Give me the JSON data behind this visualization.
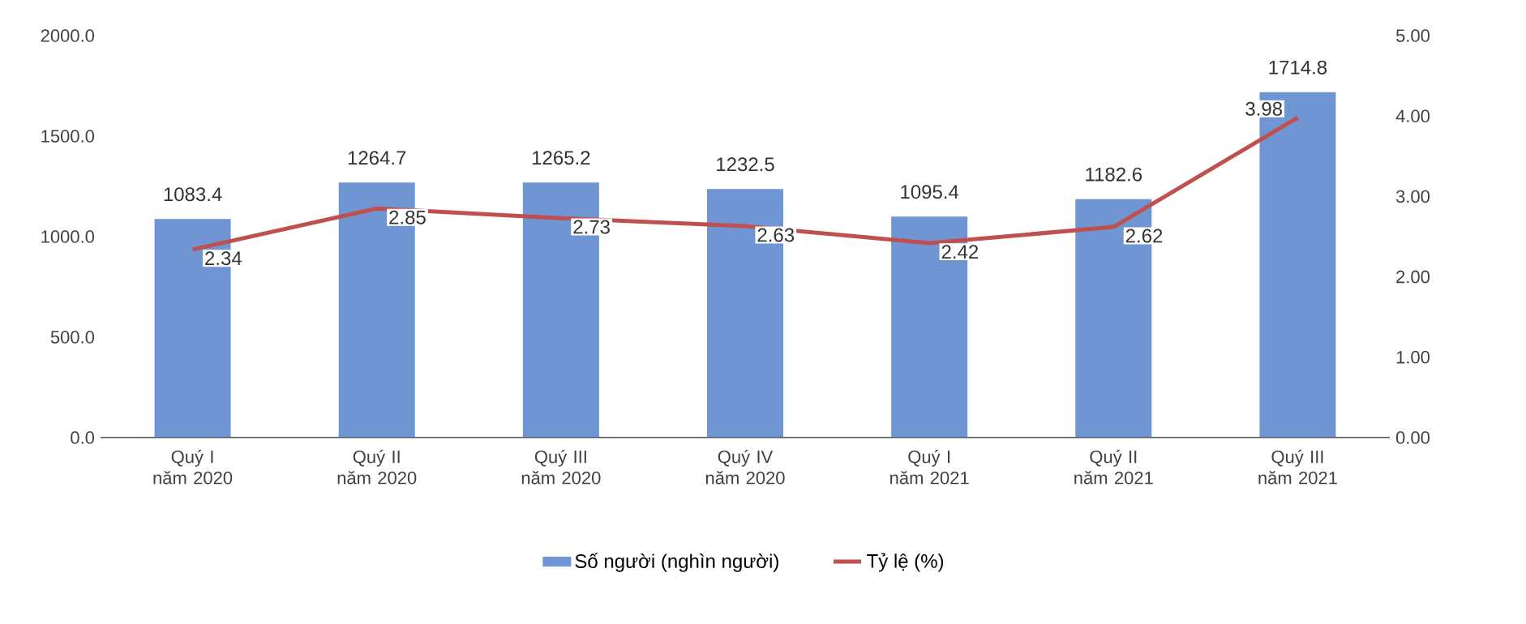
{
  "chart_data": {
    "type": "bar",
    "categories": [
      "Quý I năm 2020",
      "Quý II năm 2020",
      "Quý III năm 2020",
      "Quý IV năm 2020",
      "Quý I năm 2021",
      "Quý II năm 2021",
      "Quý III năm 2021"
    ],
    "series": [
      {
        "name": "Số người (nghìn người)",
        "color": "#6f95d2",
        "values": [
          1083.4,
          1264.7,
          1265.2,
          1232.5,
          1095.4,
          1182.6,
          1714.8
        ],
        "value_labels": [
          "1083.4",
          "1264.7",
          "1265.2",
          "1232.5",
          "1095.4",
          "1182.6",
          "1714.8"
        ]
      },
      {
        "name": "Tỷ lệ (%)",
        "type": "line",
        "axis": "y2",
        "color": "#c0504d",
        "marker": "none",
        "line_style": "solid",
        "values": [
          2.34,
          2.85,
          2.73,
          2.63,
          2.42,
          2.62,
          3.98
        ],
        "value_labels": [
          "2.34",
          "2.85",
          "2.73",
          "2.63",
          "2.42",
          "2.62",
          "3.98"
        ]
      }
    ],
    "ylim": [
      0,
      2000
    ],
    "yticks": [
      {
        "value": 0,
        "label": "0.0"
      },
      {
        "value": 500,
        "label": "500.0"
      },
      {
        "value": 1000,
        "label": "1000.0"
      },
      {
        "value": 1500,
        "label": "1500.0"
      },
      {
        "value": 2000,
        "label": "2000.0"
      }
    ],
    "y2lim": [
      0,
      5
    ],
    "y2ticks": [
      {
        "value": 0,
        "label": "0.00"
      },
      {
        "value": 1,
        "label": "1.00"
      },
      {
        "value": 2,
        "label": "2.00"
      },
      {
        "value": 3,
        "label": "3.00"
      },
      {
        "value": 4,
        "label": "4.00"
      },
      {
        "value": 5,
        "label": "5.00"
      }
    ],
    "grid": false,
    "legend": "bottom"
  }
}
